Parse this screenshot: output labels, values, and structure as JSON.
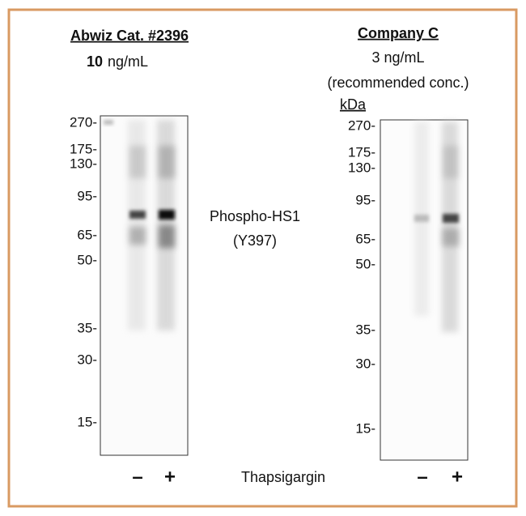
{
  "left_panel": {
    "title": "Abwiz Cat. #2396",
    "concentration_value": "10",
    "concentration_unit": "ng/mL",
    "markers": [
      "270-",
      "175-",
      "130-",
      "95-",
      "65-",
      "50-",
      "35-",
      "30-",
      "15-"
    ]
  },
  "right_panel": {
    "title": "Company C",
    "concentration": "3 ng/mL",
    "note": "(recommended conc.)",
    "unit_label": "kDa",
    "markers": [
      "270-",
      "175-",
      "130-",
      "95-",
      "65-",
      "50-",
      "35-",
      "30-",
      "15-"
    ]
  },
  "target": {
    "name": "Phospho-HS1",
    "site": "(Y397)"
  },
  "treatment": "Thapsigargin",
  "lanes": [
    "–",
    "+"
  ]
}
